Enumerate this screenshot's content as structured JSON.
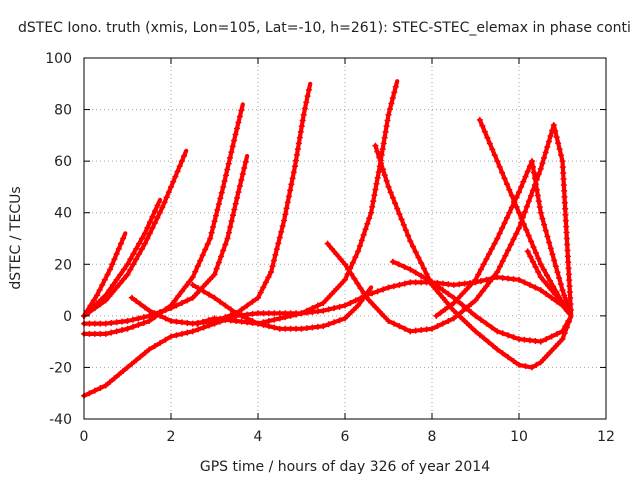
{
  "chart_data": {
    "type": "line",
    "title": "dSTEC Iono. truth (xmis, Lon=105, Lat=-10, h=261): STEC-STEC_elemax in phase conti",
    "xlabel": "GPS time / hours of day 326 of year 2014",
    "ylabel": "dSTEC  / TECUs",
    "xlim": [
      0,
      12
    ],
    "ylim": [
      -40,
      100
    ],
    "xticks": [
      0,
      2,
      4,
      6,
      8,
      10,
      12
    ],
    "yticks": [
      -40,
      -20,
      0,
      20,
      40,
      60,
      80,
      100
    ],
    "xtick_labels": [
      "0",
      "2",
      "4",
      "6",
      "8",
      "10",
      "12"
    ],
    "ytick_labels": [
      "-40",
      "-20",
      "0",
      "20",
      "40",
      "60",
      "80",
      "100"
    ],
    "grid": true,
    "marker": "plus",
    "color": "#ff0000",
    "series": [
      {
        "x": [
          0.0,
          0.3,
          0.6,
          0.95
        ],
        "y": [
          0,
          8,
          18,
          32
        ]
      },
      {
        "x": [
          0.0,
          0.5,
          1.0,
          1.4,
          1.75
        ],
        "y": [
          0,
          8,
          20,
          32,
          45
        ]
      },
      {
        "x": [
          0.0,
          0.5,
          1.0,
          1.4,
          1.8,
          2.1,
          2.35
        ],
        "y": [
          0,
          6,
          16,
          28,
          42,
          54,
          64
        ]
      },
      {
        "x": [
          0.0,
          0.5,
          1.0,
          1.5,
          2.0,
          2.5,
          2.9,
          3.2,
          3.45,
          3.65
        ],
        "y": [
          -7,
          -7,
          -5,
          -2,
          4,
          15,
          30,
          50,
          68,
          82
        ]
      },
      {
        "x": [
          0.0,
          0.5,
          1.0,
          1.5,
          2.0,
          2.5,
          3.0,
          3.3,
          3.55,
          3.75
        ],
        "y": [
          -3,
          -3,
          -2,
          0,
          3,
          7,
          16,
          30,
          48,
          62
        ]
      },
      {
        "x": [
          1.1,
          1.5,
          2.0,
          2.5,
          3.0,
          3.5,
          4.0,
          4.3,
          4.6,
          4.85,
          5.05,
          5.2
        ],
        "y": [
          7,
          2,
          -2,
          -3,
          -2,
          1,
          7,
          17,
          37,
          58,
          78,
          90
        ]
      },
      {
        "x": [
          2.5,
          3.0,
          3.5,
          4.0,
          4.5,
          5.0,
          5.5,
          6.0,
          6.3,
          6.6
        ],
        "y": [
          12,
          7,
          1,
          -3,
          -5,
          -5,
          -4,
          -1,
          4,
          11
        ]
      },
      {
        "x": [
          2.6,
          3.0,
          3.5,
          4.0,
          4.5,
          5.0,
          5.5,
          6.0,
          6.3,
          6.6,
          6.8,
          7.0,
          7.2
        ],
        "y": [
          -3,
          -1,
          -2,
          -3,
          -1,
          1,
          5,
          14,
          25,
          40,
          58,
          78,
          91
        ]
      },
      {
        "x": [
          0.0,
          0.5,
          1.0,
          1.5,
          2.0,
          2.5,
          3.0,
          3.5,
          4.0,
          4.5,
          5.0,
          5.5,
          6.0,
          6.5,
          7.0,
          7.5,
          8.0,
          8.5,
          9.0,
          9.5,
          10.0,
          10.5,
          11.0,
          11.2
        ],
        "y": [
          -31,
          -27,
          -20,
          -13,
          -8,
          -6,
          -3,
          0,
          1,
          1,
          1,
          2,
          4,
          8,
          11,
          13,
          13,
          12,
          13,
          15,
          14,
          10,
          4,
          0
        ]
      },
      {
        "x": [
          5.6,
          6.0,
          6.5,
          7.0,
          7.5,
          8.0,
          8.5,
          9.0,
          9.5,
          10.0,
          10.5,
          10.8,
          11.0,
          11.2
        ],
        "y": [
          28,
          20,
          7,
          -2,
          -6,
          -5,
          -1,
          6,
          17,
          34,
          57,
          74,
          60,
          0
        ]
      },
      {
        "x": [
          6.7,
          7.0,
          7.5,
          8.0,
          8.5,
          9.0,
          9.5,
          10.0,
          10.3,
          10.5,
          11.0,
          11.2
        ],
        "y": [
          66,
          50,
          29,
          12,
          2,
          -6,
          -13,
          -19,
          -20,
          -18,
          -9,
          0
        ]
      },
      {
        "x": [
          7.1,
          7.5,
          8.0,
          8.5,
          9.0,
          9.5,
          10.0,
          10.5,
          11.0,
          11.2
        ],
        "y": [
          21,
          18,
          13,
          7,
          0,
          -6,
          -9,
          -10,
          -6,
          0
        ]
      },
      {
        "x": [
          9.1,
          9.5,
          10.0,
          10.5,
          11.0,
          11.2
        ],
        "y": [
          76,
          60,
          40,
          20,
          5,
          0
        ]
      },
      {
        "x": [
          8.1,
          8.5,
          9.0,
          9.5,
          10.0,
          10.3,
          10.5,
          11.0,
          11.2
        ],
        "y": [
          0,
          5,
          14,
          30,
          48,
          60,
          40,
          10,
          0
        ]
      },
      {
        "x": [
          10.2,
          10.5,
          11.0,
          11.2
        ],
        "y": [
          25,
          15,
          5,
          0
        ]
      }
    ]
  }
}
